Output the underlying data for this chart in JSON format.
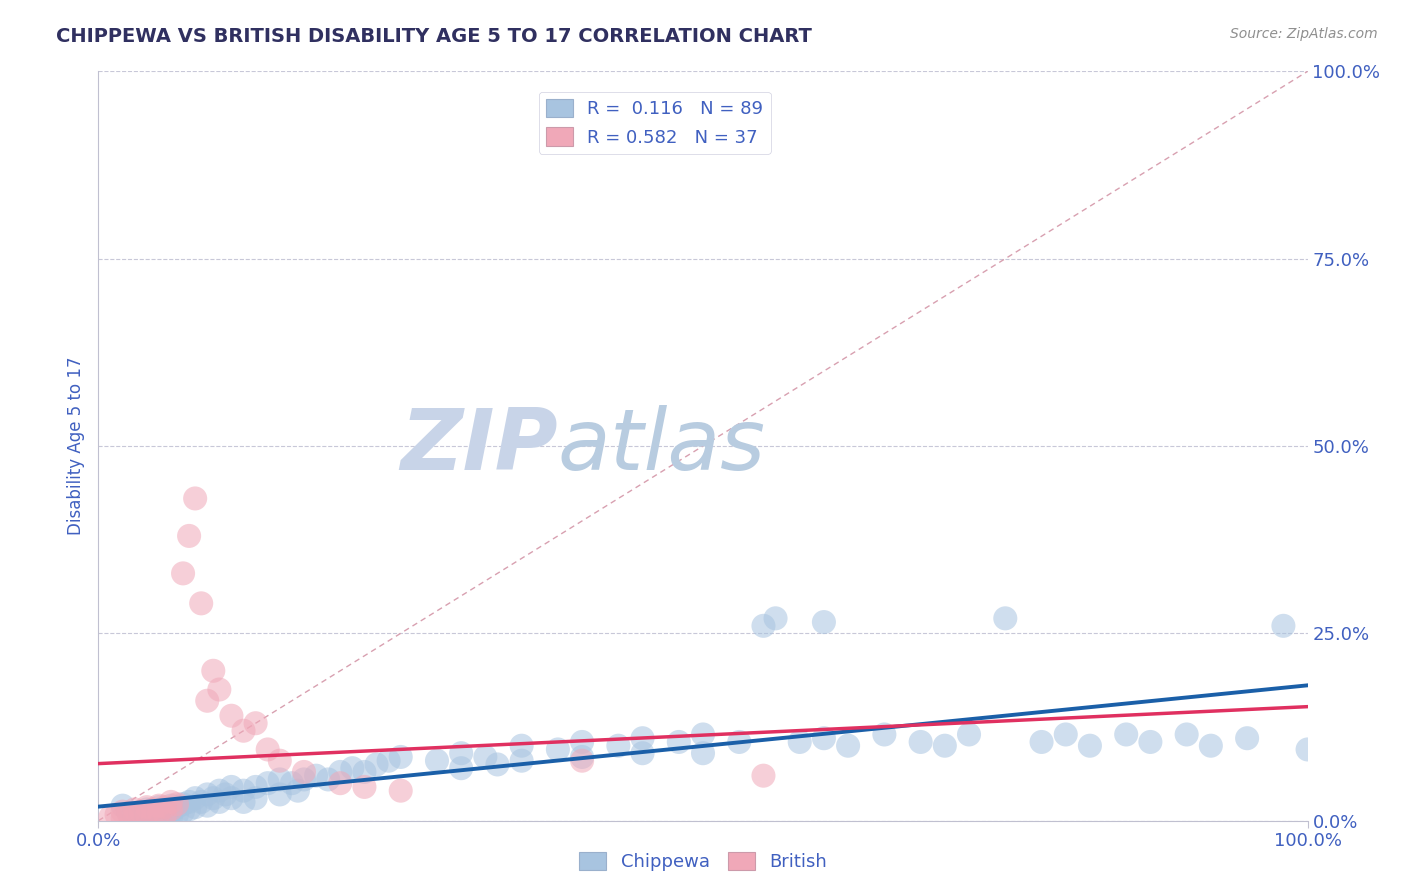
{
  "title": "CHIPPEWA VS BRITISH DISABILITY AGE 5 TO 17 CORRELATION CHART",
  "source": "Source: ZipAtlas.com",
  "ylabel": "Disability Age 5 to 17",
  "chippewa_r": 0.116,
  "chippewa_n": 89,
  "british_r": 0.582,
  "british_n": 37,
  "chippewa_color": "#a8c4e0",
  "british_color": "#f0a8b8",
  "chippewa_line_color": "#1a5fa8",
  "british_line_color": "#e03060",
  "diagonal_color": "#d8a0b0",
  "grid_color": "#c8c8d8",
  "title_color": "#303060",
  "axis_label_color": "#4060c0",
  "zip_watermark_color": "#c8d4e8",
  "atlas_watermark_color": "#b8cce0",
  "chippewa_points": [
    [
      0.02,
      0.02
    ],
    [
      0.025,
      0.01
    ],
    [
      0.03,
      0.005
    ],
    [
      0.035,
      0.008
    ],
    [
      0.04,
      0.015
    ],
    [
      0.04,
      0.005
    ],
    [
      0.045,
      0.012
    ],
    [
      0.045,
      0.003
    ],
    [
      0.05,
      0.018
    ],
    [
      0.05,
      0.01
    ],
    [
      0.05,
      0.003
    ],
    [
      0.055,
      0.015
    ],
    [
      0.055,
      0.008
    ],
    [
      0.06,
      0.02
    ],
    [
      0.06,
      0.01
    ],
    [
      0.06,
      0.003
    ],
    [
      0.065,
      0.018
    ],
    [
      0.065,
      0.008
    ],
    [
      0.07,
      0.022
    ],
    [
      0.07,
      0.012
    ],
    [
      0.075,
      0.025
    ],
    [
      0.075,
      0.015
    ],
    [
      0.08,
      0.03
    ],
    [
      0.08,
      0.018
    ],
    [
      0.085,
      0.025
    ],
    [
      0.09,
      0.035
    ],
    [
      0.09,
      0.02
    ],
    [
      0.095,
      0.03
    ],
    [
      0.1,
      0.04
    ],
    [
      0.1,
      0.025
    ],
    [
      0.105,
      0.035
    ],
    [
      0.11,
      0.045
    ],
    [
      0.11,
      0.03
    ],
    [
      0.12,
      0.04
    ],
    [
      0.12,
      0.025
    ],
    [
      0.13,
      0.045
    ],
    [
      0.13,
      0.03
    ],
    [
      0.14,
      0.05
    ],
    [
      0.15,
      0.055
    ],
    [
      0.15,
      0.035
    ],
    [
      0.16,
      0.05
    ],
    [
      0.165,
      0.04
    ],
    [
      0.17,
      0.055
    ],
    [
      0.18,
      0.06
    ],
    [
      0.19,
      0.055
    ],
    [
      0.2,
      0.065
    ],
    [
      0.21,
      0.07
    ],
    [
      0.22,
      0.065
    ],
    [
      0.23,
      0.075
    ],
    [
      0.24,
      0.08
    ],
    [
      0.25,
      0.085
    ],
    [
      0.28,
      0.08
    ],
    [
      0.3,
      0.09
    ],
    [
      0.3,
      0.07
    ],
    [
      0.32,
      0.085
    ],
    [
      0.33,
      0.075
    ],
    [
      0.35,
      0.1
    ],
    [
      0.35,
      0.08
    ],
    [
      0.38,
      0.095
    ],
    [
      0.4,
      0.105
    ],
    [
      0.4,
      0.085
    ],
    [
      0.43,
      0.1
    ],
    [
      0.45,
      0.11
    ],
    [
      0.45,
      0.09
    ],
    [
      0.48,
      0.105
    ],
    [
      0.5,
      0.115
    ],
    [
      0.5,
      0.09
    ],
    [
      0.53,
      0.105
    ],
    [
      0.55,
      0.26
    ],
    [
      0.56,
      0.27
    ],
    [
      0.58,
      0.105
    ],
    [
      0.6,
      0.265
    ],
    [
      0.6,
      0.11
    ],
    [
      0.62,
      0.1
    ],
    [
      0.65,
      0.115
    ],
    [
      0.68,
      0.105
    ],
    [
      0.7,
      0.1
    ],
    [
      0.72,
      0.115
    ],
    [
      0.75,
      0.27
    ],
    [
      0.78,
      0.105
    ],
    [
      0.8,
      0.115
    ],
    [
      0.82,
      0.1
    ],
    [
      0.85,
      0.115
    ],
    [
      0.87,
      0.105
    ],
    [
      0.9,
      0.115
    ],
    [
      0.92,
      0.1
    ],
    [
      0.95,
      0.11
    ],
    [
      0.98,
      0.26
    ],
    [
      1.0,
      0.095
    ]
  ],
  "british_points": [
    [
      0.01,
      0.005
    ],
    [
      0.015,
      0.008
    ],
    [
      0.02,
      0.012
    ],
    [
      0.02,
      0.003
    ],
    [
      0.025,
      0.01
    ],
    [
      0.03,
      0.015
    ],
    [
      0.03,
      0.005
    ],
    [
      0.035,
      0.012
    ],
    [
      0.04,
      0.018
    ],
    [
      0.04,
      0.008
    ],
    [
      0.045,
      0.015
    ],
    [
      0.045,
      0.005
    ],
    [
      0.05,
      0.02
    ],
    [
      0.05,
      0.01
    ],
    [
      0.055,
      0.018
    ],
    [
      0.055,
      0.008
    ],
    [
      0.06,
      0.025
    ],
    [
      0.06,
      0.015
    ],
    [
      0.065,
      0.022
    ],
    [
      0.07,
      0.33
    ],
    [
      0.075,
      0.38
    ],
    [
      0.08,
      0.43
    ],
    [
      0.085,
      0.29
    ],
    [
      0.09,
      0.16
    ],
    [
      0.095,
      0.2
    ],
    [
      0.1,
      0.175
    ],
    [
      0.11,
      0.14
    ],
    [
      0.12,
      0.12
    ],
    [
      0.13,
      0.13
    ],
    [
      0.14,
      0.095
    ],
    [
      0.15,
      0.08
    ],
    [
      0.17,
      0.065
    ],
    [
      0.2,
      0.05
    ],
    [
      0.22,
      0.045
    ],
    [
      0.25,
      0.04
    ],
    [
      0.4,
      0.08
    ],
    [
      0.55,
      0.06
    ]
  ]
}
